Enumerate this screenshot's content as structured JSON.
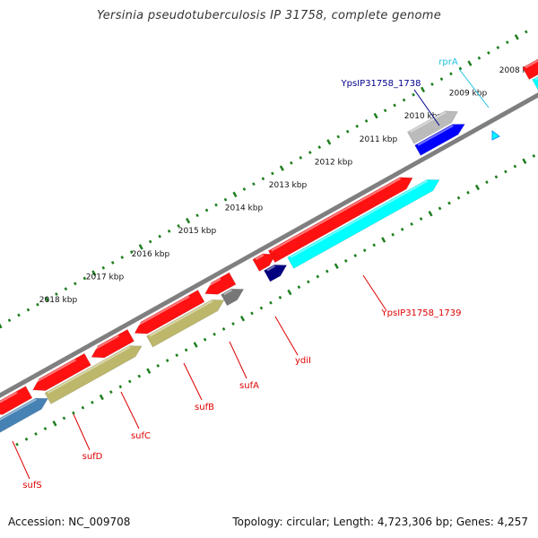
{
  "title": "Yersinia pseudotuberculosis IP 31758, complete genome",
  "accession": "Accession: NC_009708",
  "summary": "Topology: circular; Length: 4,723,306 bp; Genes: 4,257",
  "colors": {
    "backbone": "#7f7f7f",
    "tick": "#1f7f1f",
    "gene_red": "#ff1111",
    "gene_cyan": "#00ffff",
    "gene_olive": "#bdb76b",
    "gene_gray": "#777777",
    "gene_navy": "#000080",
    "gene_blue": "#0000ff",
    "gene_steel": "#4682b4",
    "gene_lightgray": "#bbbbbb",
    "label_red": "#dd0000",
    "label_navy": "#00008b",
    "label_cyan": "#1ec2e0"
  },
  "scale_labels": [
    "2008 kbp",
    "2009 kbp",
    "2010 kbp",
    "2011 kbp",
    "2012 kbp",
    "2013 kbp",
    "2014 kbp",
    "2015 kbp",
    "2016 kbp",
    "2017 kbp",
    "2018 kbp"
  ],
  "gene_labels": [
    {
      "text": "rprA",
      "color": "label_cyan"
    },
    {
      "text": "YpsIP31758_1738",
      "color": "label_navy"
    },
    {
      "text": "YpsIP31758_1739",
      "color": "label_red"
    },
    {
      "text": "ydiI",
      "color": "label_red"
    },
    {
      "text": "sufA",
      "color": "label_red"
    },
    {
      "text": "sufB",
      "color": "label_red"
    },
    {
      "text": "sufC",
      "color": "label_red"
    },
    {
      "text": "sufD",
      "color": "label_red"
    },
    {
      "text": "sufS",
      "color": "label_red"
    }
  ]
}
